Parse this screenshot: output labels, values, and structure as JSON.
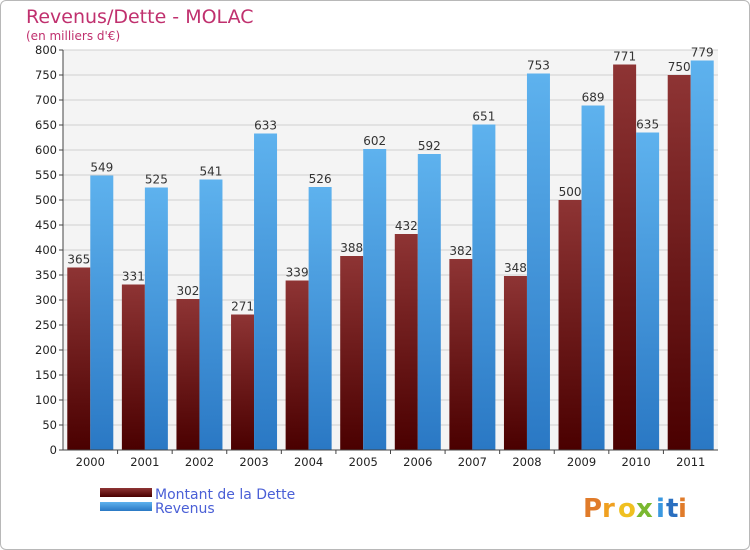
{
  "chart_data": {
    "type": "bar",
    "title": "Revenus/Dette - MOLAC",
    "subtitle": "(en milliers d'€)",
    "categories": [
      "2000",
      "2001",
      "2002",
      "2003",
      "2004",
      "2005",
      "2006",
      "2007",
      "2008",
      "2009",
      "2010",
      "2011"
    ],
    "series": [
      {
        "name": "Montant de la Dette",
        "color": "#8b1a1a",
        "values": [
          365,
          331,
          302,
          271,
          339,
          388,
          432,
          382,
          348,
          500,
          771,
          750
        ]
      },
      {
        "name": "Revenus",
        "color": "#3a98e0",
        "values": [
          549,
          525,
          541,
          633,
          526,
          602,
          592,
          651,
          753,
          689,
          635,
          779
        ]
      }
    ],
    "ylim": [
      0,
      800
    ],
    "yticks": [
      0,
      50,
      100,
      150,
      200,
      250,
      300,
      350,
      400,
      450,
      500,
      550,
      600,
      650,
      700,
      750,
      800
    ],
    "grid": true,
    "legend": "bottom-left"
  },
  "branding": {
    "logo_letters": [
      "P",
      "r",
      "o",
      "x",
      "i",
      "t",
      "i"
    ],
    "logo_colors": [
      "#e07b2a",
      "#f0a020",
      "#f0c020",
      "#7ab830",
      "#3a98e0",
      "#2a6fc0",
      "#e07b2a"
    ]
  }
}
